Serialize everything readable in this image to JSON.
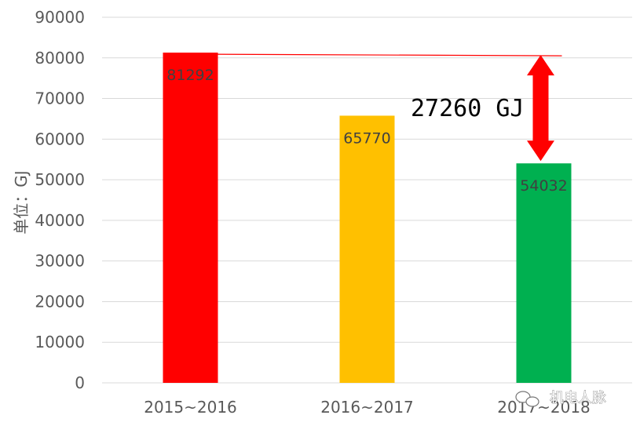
{
  "chart_data": {
    "type": "bar",
    "categories": [
      "2015~2016",
      "2016~2017",
      "2017~2018"
    ],
    "values": [
      81292,
      65770,
      54032
    ],
    "data_labels": [
      "81292",
      "65770",
      "54032"
    ],
    "colors": [
      "#ff0000",
      "#ffc000",
      "#00b050"
    ],
    "ylabel": "单位：GJ",
    "ylim": [
      0,
      90000
    ],
    "yticks": [
      "0",
      "10000",
      "20000",
      "30000",
      "40000",
      "50000",
      "60000",
      "70000",
      "80000",
      "90000"
    ],
    "grid": true,
    "annotation": {
      "text": "27260 GJ",
      "from_value": 81292,
      "to_value": 54032,
      "arrow_color": "#ff0000"
    }
  },
  "watermark": {
    "text": "机电人脉",
    "icon": "wechat-icon"
  }
}
